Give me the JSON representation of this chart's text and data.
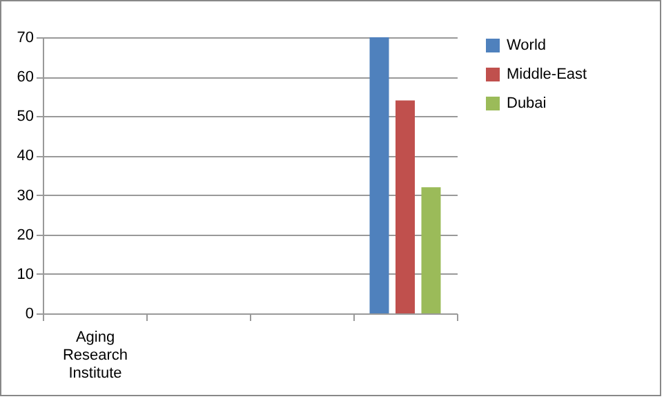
{
  "chart_data": {
    "type": "bar",
    "categories": [
      "Aging Research Institute",
      null,
      null,
      null
    ],
    "series": [
      {
        "name": "World",
        "color": "#4f81bd",
        "values": [
          null,
          null,
          null,
          70
        ]
      },
      {
        "name": "Middle-East",
        "color": "#c0504d",
        "values": [
          null,
          null,
          null,
          54
        ]
      },
      {
        "name": "Dubai",
        "color": "#9bbb59",
        "values": [
          null,
          null,
          null,
          32
        ]
      }
    ],
    "ylim": [
      0,
      70
    ],
    "yticks": [
      0,
      10,
      20,
      30,
      40,
      50,
      60,
      70
    ],
    "grid": "y",
    "legend": "right"
  }
}
